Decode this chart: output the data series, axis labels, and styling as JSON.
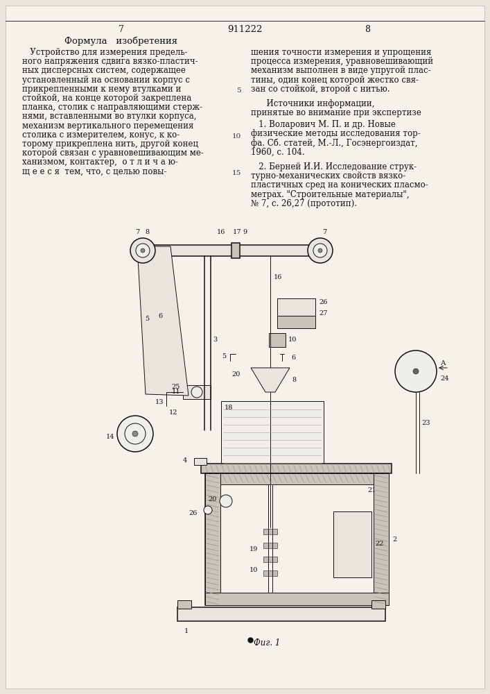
{
  "bg_color": "#e8e5de",
  "page_color": "#f5f2eb",
  "page_num_left": "7",
  "page_num_center": "911222",
  "page_num_right": "8",
  "col_left_heading": "Формула   изобретения",
  "col_left_body": [
    "   Устройство для измерения предель-",
    "ного напряжения сдвига вязко-пластич-",
    "ных дисперсных систем, содержащее",
    "установленный на основании корпус с",
    "прикрепленными к нему втулками и",
    "стойкой, на конце которой закреплена",
    "планка, столик с направляющими стерж-",
    "нями, вставленными во втулки корпуса,",
    "механизм вертикального перемещения",
    "столика с измерителем, конус, к ко-",
    "торому прикреплена нить, другой конец",
    "которой связан с уравновешивающим ме-",
    "ханизмом, контактер,  о т л и ч а ю-",
    "щ е е с я  тем, что, с целью повы-"
  ],
  "col_right_body": [
    "шения точности измерения и упрощения",
    "процесса измерения, уравновешивающий",
    "механизм выполнен в виде упругой плас-",
    "тины, один конец которой жестко свя-",
    "зан со стойкой, второй с нитью."
  ],
  "sources_head": "      Источники информации,",
  "sources_sub": "принятые во внимание при экспертизе",
  "source1_lines": [
    "   1. Воларович М. П. и др. Новые",
    "физические методы исследования тор-",
    "фа. Сб. статей, М.-Л., Госэнергоиздат,",
    "1960, с. 104."
  ],
  "source2_lines": [
    "   2. Берней И.И. Исследование струк-",
    "турно-механических свойств вязко-",
    "пластичных сред на конических пласмо-",
    "метрах. \"Строительные материалы\",",
    "№ 7, с. 26,27 (прототип)."
  ],
  "fig_label": "Фиг. 1",
  "line_mark_indices": [
    4,
    9,
    13
  ],
  "line_mark_labels": [
    "5",
    "10",
    "15"
  ]
}
